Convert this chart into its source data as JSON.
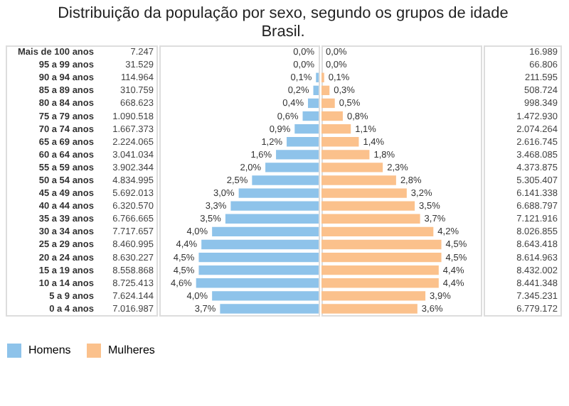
{
  "chart_data": [
    {
      "type": "bar",
      "orientation": "horizontal",
      "title": [
        "Distribuição da população por sexo, segundo os grupos de idade",
        "Brasil."
      ],
      "categories": [
        "Mais de 100 anos",
        "95 a 99 anos",
        "90 a 94 anos",
        "85 a 89 anos",
        "80 a 84 anos",
        "75 a 79 anos",
        "70 a 74 anos",
        "65 a 69 anos",
        "60 a 64 anos",
        "55 a 59 anos",
        "50 a 54 anos",
        "45 a 49 anos",
        "40 a 44 anos",
        "35 a 39 anos",
        "30 a 34 anos",
        "25 a 29 anos",
        "20 a 24 anos",
        "15 a 19 anos",
        "10 a 14 anos",
        "5 a 9 anos",
        "0 a 4 anos"
      ],
      "series": [
        {
          "name": "Homens",
          "color": "#8ec3ea",
          "values": [
            0.0,
            0.0,
            0.1,
            0.2,
            0.4,
            0.6,
            0.9,
            1.2,
            1.6,
            2.0,
            2.5,
            3.0,
            3.3,
            3.5,
            4.0,
            4.4,
            4.5,
            4.5,
            4.6,
            4.0,
            3.7
          ],
          "value_labels": [
            "0,0%",
            "0,0%",
            "0,1%",
            "0,2%",
            "0,4%",
            "0,6%",
            "0,9%",
            "1,2%",
            "1,6%",
            "2,0%",
            "2,5%",
            "3,0%",
            "3,3%",
            "3,5%",
            "4,0%",
            "4,4%",
            "4,5%",
            "4,5%",
            "4,6%",
            "4,0%",
            "3,7%"
          ]
        }
      ],
      "annotations": [
        "7.247",
        "31.529",
        "114.964",
        "310.759",
        "668.623",
        "1.090.518",
        "1.667.373",
        "2.224.065",
        "3.041.034",
        "3.902.344",
        "4.834.995",
        "5.692.013",
        "6.320.570",
        "6.766.665",
        "7.717.657",
        "8.460.995",
        "8.630.227",
        "8.558.868",
        "8.725.413",
        "7.624.144",
        "7.016.987"
      ],
      "legend": "bottom"
    },
    {
      "type": "bar",
      "orientation": "horizontal",
      "tick_labels": false,
      "categories": [
        "Mais de 100 anos",
        "95 a 99 anos",
        "90 a 94 anos",
        "85 a 89 anos",
        "80 a 84 anos",
        "75 a 79 anos",
        "70 a 74 anos",
        "65 a 69 anos",
        "60 a 64 anos",
        "55 a 59 anos",
        "50 a 54 anos",
        "45 a 49 anos",
        "40 a 44 anos",
        "35 a 39 anos",
        "30 a 34 anos",
        "25 a 29 anos",
        "20 a 24 anos",
        "15 a 19 anos",
        "10 a 14 anos",
        "5 a 9 anos",
        "0 a 4 anos"
      ],
      "series": [
        {
          "name": "Mulheres",
          "color": "#fbc18c",
          "values": [
            0.0,
            0.0,
            0.1,
            0.3,
            0.5,
            0.8,
            1.1,
            1.4,
            1.8,
            2.3,
            2.8,
            3.2,
            3.5,
            3.7,
            4.2,
            4.5,
            4.5,
            4.4,
            4.4,
            3.9,
            3.6
          ],
          "value_labels": [
            "0,0%",
            "0,0%",
            "0,1%",
            "0,3%",
            "0,5%",
            "0,8%",
            "1,1%",
            "1,4%",
            "1,8%",
            "2,3%",
            "2,8%",
            "3,2%",
            "3,5%",
            "3,7%",
            "4,2%",
            "4,5%",
            "4,5%",
            "4,4%",
            "4,4%",
            "3,9%",
            "3,6%"
          ]
        }
      ],
      "annotations": [
        "16.989",
        "66.806",
        "211.595",
        "508.724",
        "998.349",
        "1.472.930",
        "2.074.264",
        "2.616.745",
        "3.468.085",
        "4.373.875",
        "5.305.407",
        "6.141.338",
        "6.688.797",
        "7.121.916",
        "8.026.855",
        "8.643.418",
        "8.614.963",
        "8.432.002",
        "8.441.348",
        "7.345.231",
        "6.779.172"
      ],
      "legend": "bottom"
    }
  ]
}
